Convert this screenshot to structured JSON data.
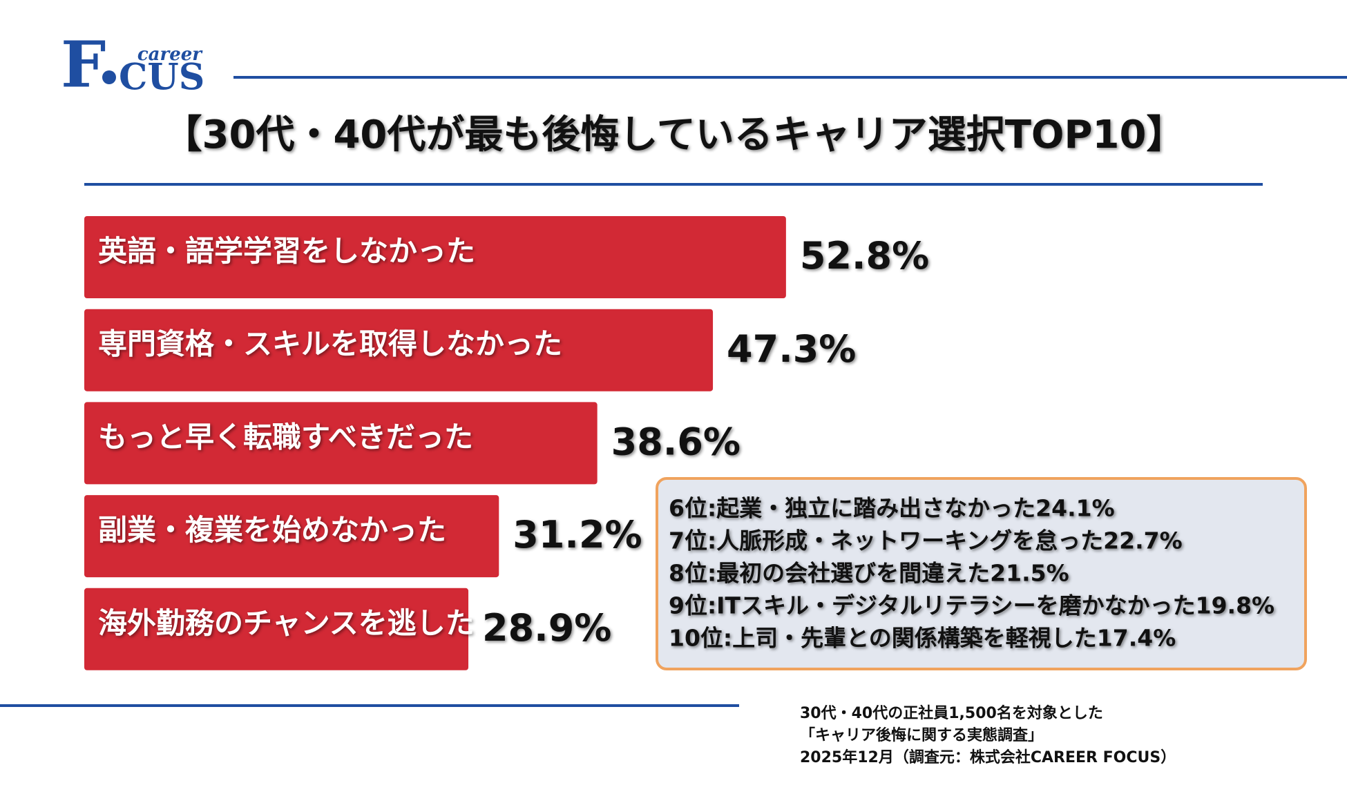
{
  "logo": {
    "initial": "F",
    "rest": "CUS",
    "small": "career"
  },
  "chart_data": {
    "type": "bar",
    "orientation": "horizontal",
    "title": "【30代・40代が最も後悔しているキャリア選択TOP10】",
    "categories": [
      "英語・語学学習をしなかった",
      "専門資格・スキルを取得しなかった",
      "もっと早く転職すべきだった",
      "副業・複業を始めなかった",
      "海外勤務のチャンスを逃した"
    ],
    "values": [
      52.8,
      47.3,
      38.6,
      31.2,
      28.9
    ],
    "value_labels": [
      "52.8%",
      "47.3%",
      "38.6%",
      "31.2%",
      "28.9%"
    ],
    "color": "#d22935",
    "annotations": [
      "6位:起業・独立に踏み出さなかった24.1%",
      "7位:人脈形成・ネットワーキングを怠った22.7%",
      "8位:最初の会社選びを間違えた21.5%",
      "9位:ITスキル・デジタルリテラシーを磨かなかった19.8%",
      "10位:上司・先輩との関係構築を軽視した17.4%"
    ]
  },
  "footer": {
    "lines": [
      "30代・40代の正社員1,500名を対象とした",
      "「キャリア後悔に関する実態調査」",
      "2025年12月（調査元：株式会社CAREER FOCUS）"
    ]
  }
}
